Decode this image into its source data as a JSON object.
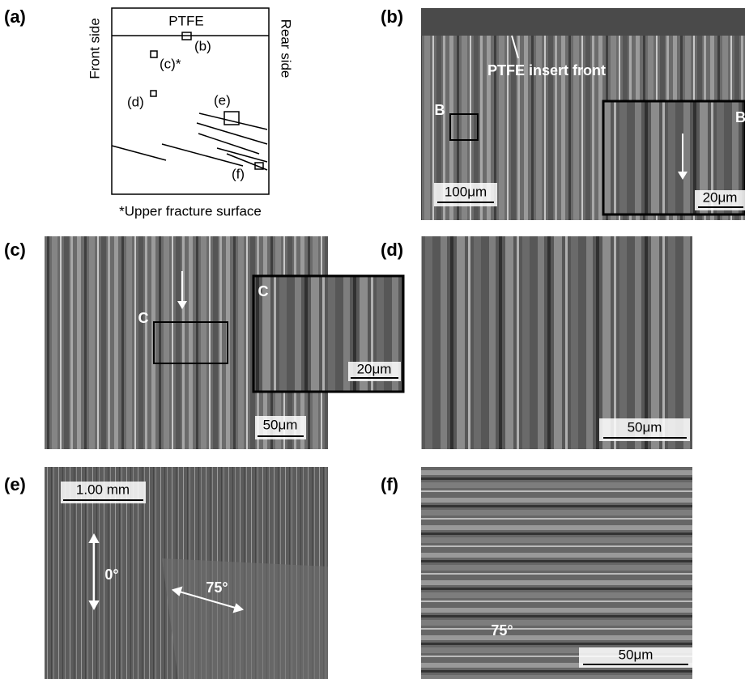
{
  "panels": [
    {
      "label": "(a)"
    },
    {
      "label": "(b)"
    },
    {
      "label": "(c)"
    },
    {
      "label": "(d)"
    },
    {
      "label": "(e)"
    },
    {
      "label": "(f)"
    }
  ],
  "diagram": {
    "top_label": "PTFE",
    "left_label": "Front side",
    "right_label": "Rear side",
    "locations": [
      "(b)",
      "(c)*",
      "(d)",
      "(e)",
      "(f)"
    ],
    "footnote": "*Upper fracture surface"
  },
  "panel_b": {
    "annotation": "PTFE insert front",
    "region": "B",
    "inset_label": "B",
    "scale_bar": "100μm",
    "inset_scale_bar": "20μm"
  },
  "panel_c": {
    "region": "C",
    "inset_label": "C",
    "inset_scale_bar": "20μm",
    "scale_bar": "50μm"
  },
  "panel_d": {
    "scale_bar": "50μm"
  },
  "panel_e": {
    "scale_bar": "1.00 mm",
    "angle_1": "0°",
    "angle_2": "75°"
  },
  "panel_f": {
    "angle": "75°",
    "scale_bar": "50μm"
  }
}
